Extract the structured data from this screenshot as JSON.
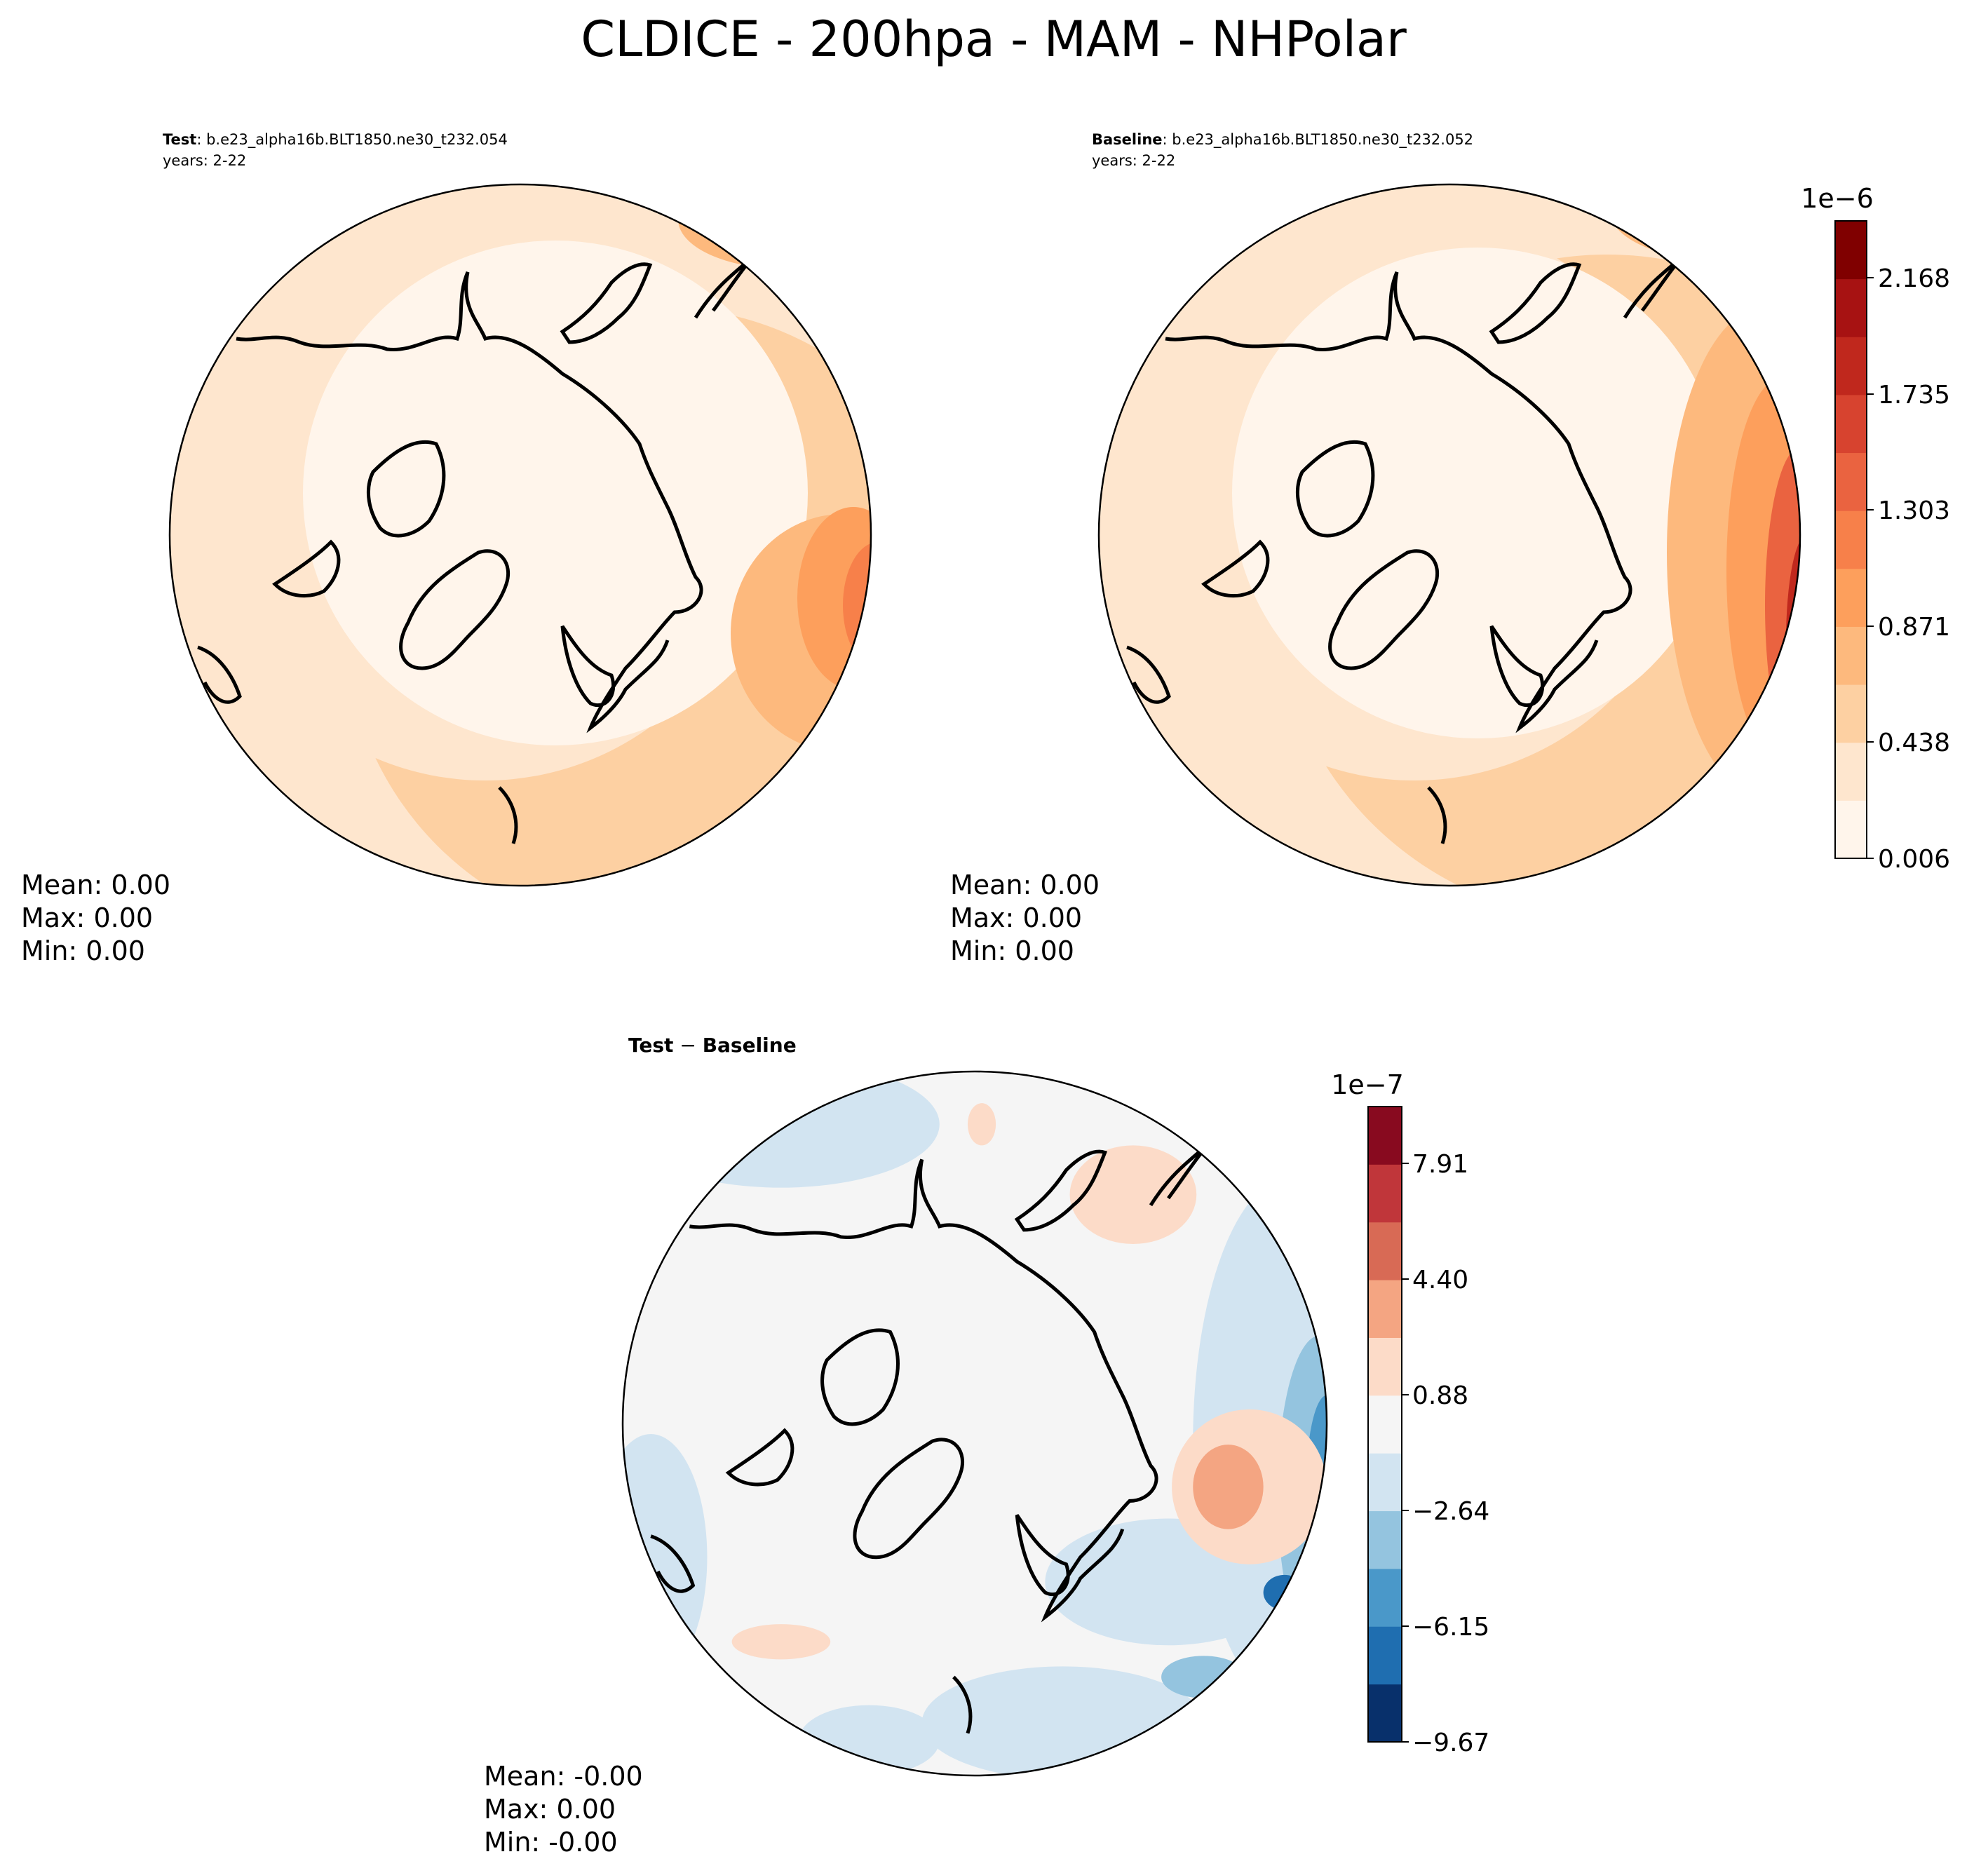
{
  "title": "CLDICE - 200hpa - MAM - NHPolar",
  "colors": {
    "outline": "#000000",
    "seq": [
      "#fff5eb",
      "#fee6ce",
      "#fdd0a2",
      "#fdb97d",
      "#fd9f5c",
      "#f7804a",
      "#ea6340",
      "#d7432f",
      "#c0281d",
      "#a71212",
      "#800000"
    ],
    "div": [
      "#08306b",
      "#1f6eb0",
      "#4a98c9",
      "#94c4df",
      "#d2e4f1",
      "#f5f5f5",
      "#fcdbc8",
      "#f4a582",
      "#d86a55",
      "#c0363a",
      "#880a1f"
    ]
  },
  "panels": {
    "test": {
      "label": "Test",
      "case": ": b.e23_alpha16b.BLT1850.ne30_t232.054",
      "years": "years: 2-22",
      "stats": {
        "mean": "Mean:  0.00",
        "max": "Max:  0.00",
        "min": "Min:  0.00"
      }
    },
    "baseline": {
      "label": "Baseline",
      "case": ": b.e23_alpha16b.BLT1850.ne30_t232.052",
      "years": "years: 2-22",
      "stats": {
        "mean": "Mean:  0.00",
        "max": "Max:  0.00",
        "min": "Min:  0.00"
      }
    },
    "diff": {
      "label_a": "Test",
      "label_sep": " − ",
      "label_b": "Baseline",
      "stats": {
        "mean": "Mean: -0.00",
        "max": "Max:  0.00",
        "min": "Min: -0.00"
      }
    }
  },
  "colorbars": {
    "main": {
      "exponent": "1e−6",
      "ticks": [
        "2.168",
        "1.735",
        "1.303",
        "0.871",
        "0.438",
        "0.006"
      ]
    },
    "diff": {
      "exponent": "1e−7",
      "ticks": [
        "7.91",
        "4.40",
        "0.88",
        "−2.64",
        "−6.15",
        "−9.67"
      ]
    }
  }
}
